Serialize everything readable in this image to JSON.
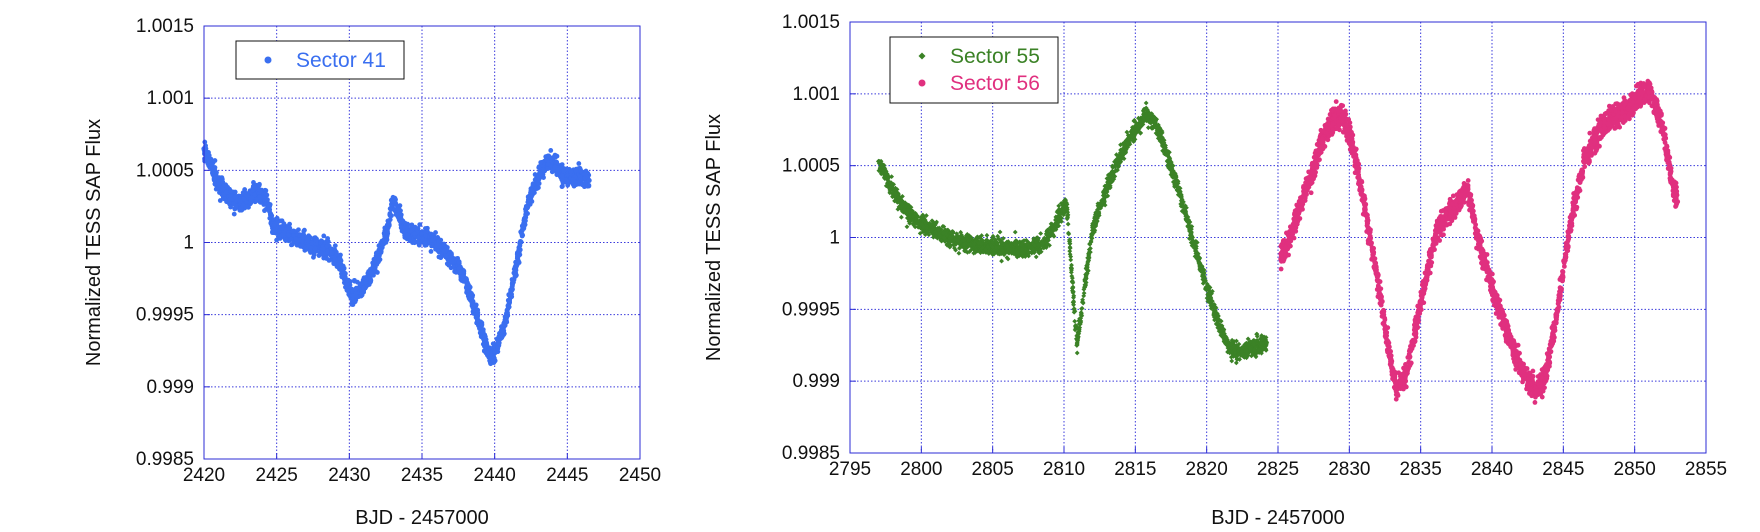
{
  "chart_data": [
    {
      "type": "scatter",
      "xlabel": "BJD - 2457000",
      "ylabel": "Normalized TESS SAP Flux",
      "xlim": [
        2420,
        2450
      ],
      "ylim": [
        0.9985,
        1.0015
      ],
      "xticks": [
        2420,
        2425,
        2430,
        2435,
        2440,
        2445,
        2450
      ],
      "xtick_labels": [
        "2420",
        "2425",
        "2430",
        "2435",
        "2440",
        "2445",
        "2450"
      ],
      "yticks": [
        0.9985,
        0.999,
        0.9995,
        1.0,
        1.0005,
        1.001,
        1.0015
      ],
      "ytick_labels": [
        "0.9985",
        "0.999",
        "0.9995",
        "1",
        "1.0005",
        "1.001",
        "1.0015"
      ],
      "grid": true,
      "legend_position": "top-left",
      "series": [
        {
          "name": "Sector 41",
          "color": "#3a6ff0",
          "marker": "circle",
          "x": [
            2420.0,
            2420.3,
            2420.7,
            2421.2,
            2421.8,
            2422.5,
            2423.2,
            2423.8,
            2424.2,
            2424.5,
            2424.7,
            2425.2,
            2426.0,
            2427.0,
            2428.0,
            2428.8,
            2429.4,
            2429.8,
            2430.2,
            2430.8,
            2431.4,
            2432.0,
            2432.6,
            2433.0,
            2433.8,
            2434.5,
            2435.5,
            2436.5,
            2437.5,
            2438.3,
            2438.8,
            2439.3,
            2439.7,
            2440.2,
            2440.8,
            2441.5,
            2442.3,
            2443.0,
            2443.6,
            2444.1,
            2444.6,
            2445.2,
            2445.8,
            2446.2,
            2446.5
          ],
          "y": [
            1.00065,
            1.00058,
            1.00048,
            1.00038,
            1.00031,
            1.00028,
            1.00032,
            1.00034,
            1.0003,
            1.00025,
            1.00013,
            1.00008,
            1.00005,
            1.0,
            0.99997,
            0.99993,
            0.99985,
            0.99972,
            0.99963,
            0.99968,
            0.99977,
            0.9999,
            1.00008,
            1.0003,
            1.00008,
            1.00005,
            1.00003,
            0.99995,
            0.99983,
            0.99965,
            0.99948,
            0.99932,
            0.9992,
            0.99927,
            0.99948,
            0.99985,
            1.00028,
            1.00045,
            1.00057,
            1.00055,
            1.00048,
            1.00045,
            1.00047,
            1.00045,
            1.00043
          ],
          "scatter": 3e-05
        }
      ]
    },
    {
      "type": "scatter",
      "xlabel": "BJD - 2457000",
      "ylabel": "Normalized TESS SAP Flux",
      "xlim": [
        2795,
        2855
      ],
      "ylim": [
        0.9985,
        1.0015
      ],
      "xticks": [
        2795,
        2800,
        2805,
        2810,
        2815,
        2820,
        2825,
        2830,
        2835,
        2840,
        2845,
        2850,
        2855
      ],
      "xtick_labels": [
        "2795",
        "2800",
        "2805",
        "2810",
        "2815",
        "2820",
        "2825",
        "2830",
        "2835",
        "2840",
        "2845",
        "2850",
        "2855"
      ],
      "yticks": [
        0.9985,
        0.999,
        0.9995,
        1.0,
        1.0005,
        1.001,
        1.0015
      ],
      "ytick_labels": [
        "0.9985",
        "0.999",
        "0.9995",
        "1",
        "1.0005",
        "1.001",
        "1.0015"
      ],
      "grid": true,
      "legend_position": "top-left",
      "series": [
        {
          "name": "Sector 55",
          "color": "#3b8226",
          "marker": "diamond",
          "x": [
            2797.0,
            2797.5,
            2798.2,
            2799.0,
            2800.0,
            2801.0,
            2802.0,
            2803.0,
            2804.0,
            2805.0,
            2806.0,
            2807.0,
            2807.8,
            2808.5,
            2809.2,
            2809.8,
            2810.2,
            2810.9,
            2811.3,
            2812.0,
            2813.0,
            2814.0,
            2815.0,
            2815.8,
            2816.3,
            2817.0,
            2818.0,
            2819.0,
            2820.0,
            2820.8,
            2821.5,
            2822.2,
            2823.0,
            2823.7,
            2824.2
          ],
          "y": [
            1.00053,
            1.00043,
            1.0003,
            1.00018,
            1.0001,
            1.00004,
            1.0,
            0.99997,
            0.99995,
            0.99993,
            0.99992,
            0.99993,
            0.99993,
            0.99995,
            1.00005,
            1.00018,
            1.00023,
            0.99925,
            0.99955,
            1.00005,
            1.00035,
            1.00058,
            1.00075,
            1.00085,
            1.00082,
            1.00065,
            1.00035,
            1.0,
            0.99965,
            0.99942,
            0.99925,
            0.9992,
            0.99923,
            0.99925,
            0.99927
          ],
          "scatter": 3e-05
        },
        {
          "name": "Sector 56",
          "color": "#e0307f",
          "marker": "circle",
          "x": [
            2825.2,
            2826.0,
            2827.0,
            2828.0,
            2828.8,
            2829.5,
            2830.2,
            2831.0,
            2832.0,
            2832.7,
            2833.3,
            2834.0,
            2835.0,
            2836.0,
            2837.0,
            2837.8,
            2838.3,
            2839.0,
            2840.0,
            2841.0,
            2842.0,
            2843.0,
            2843.7,
            2844.5,
            2845.5,
            2846.5,
            2847.5,
            2848.5,
            2849.5,
            2850.3,
            2851.0,
            2851.5,
            2852.0,
            2852.5,
            2853.0
          ],
          "y": [
            0.99985,
            1.00005,
            1.00035,
            1.00065,
            1.00082,
            1.00085,
            1.00065,
            1.00025,
            0.9997,
            0.99925,
            0.99895,
            0.99905,
            0.99955,
            1.0,
            1.0002,
            1.00025,
            1.00035,
            1.0,
            0.99965,
            0.99935,
            0.9991,
            0.99893,
            0.999,
            0.99945,
            1.0001,
            1.00055,
            1.00075,
            1.00082,
            1.0009,
            1.00097,
            1.00102,
            1.00092,
            1.00075,
            1.00045,
            1.00025
          ],
          "scatter": 4e-05
        }
      ]
    }
  ]
}
